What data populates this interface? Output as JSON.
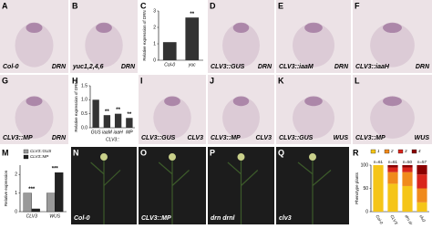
{
  "panels": [
    {
      "letter": "A",
      "left": "Col-0",
      "right": "DRN"
    },
    {
      "letter": "B",
      "left": "yuc1,2,4,6",
      "right": "DRN"
    },
    {
      "letter": "D",
      "left": "CLV3::GUS",
      "right": "DRN"
    },
    {
      "letter": "E",
      "left": "CLV3::iaaM",
      "right": "DRN"
    },
    {
      "letter": "F",
      "left": "CLV3::iaaH",
      "right": "DRN"
    },
    {
      "letter": "G",
      "left": "CLV3::MP",
      "right": "DRN"
    },
    {
      "letter": "I",
      "left": "CLV3::GUS",
      "right": "CLV3"
    },
    {
      "letter": "J",
      "left": "CLV3::MP",
      "right": "CLV3"
    },
    {
      "letter": "K",
      "left": "CLV3::GUS",
      "right": "WUS"
    },
    {
      "letter": "L",
      "left": "CLV3::MP",
      "right": "WUS"
    },
    {
      "letter": "N",
      "left": "Col-0"
    },
    {
      "letter": "O",
      "left": "CLV3::MP"
    },
    {
      "letter": "P",
      "left": "drn drnl"
    },
    {
      "letter": "Q",
      "left": "clv3"
    }
  ],
  "chart_data": [
    {
      "type": "bar",
      "letter": "C",
      "ylabel": "Relative expression of DRN",
      "categories": [
        "Col-0",
        "yuc"
      ],
      "values": [
        1.1,
        2.6
      ],
      "color": "#333333",
      "significance": [
        null,
        "**"
      ],
      "ylim": [
        0,
        3
      ],
      "yticks": [
        0,
        1,
        2,
        3
      ]
    },
    {
      "type": "bar",
      "letter": "H",
      "ylabel": "Relative expression of DRN",
      "xlabel": "CLV3::",
      "categories": [
        "GUS",
        "iaaM",
        "iaaH",
        "MP"
      ],
      "values": [
        1.0,
        0.45,
        0.5,
        0.35
      ],
      "color": "#333333",
      "significance": [
        null,
        "**",
        "**",
        "**"
      ],
      "ylim": [
        0,
        1.5
      ],
      "yticks": [
        {
          "value": 0,
          "label": "0.0"
        },
        {
          "value": 0.5,
          "label": "0.5"
        },
        {
          "value": 1,
          "label": "1.0"
        },
        {
          "value": 1.5,
          "label": "1.5"
        }
      ]
    },
    {
      "type": "bar",
      "letter": "M",
      "ylabel": "Relative expression",
      "categories": [
        "CLV3",
        "WUS"
      ],
      "series": [
        {
          "name": "CLV3::GUS",
          "color": "#9a9a9a",
          "values": [
            1,
            1
          ]
        },
        {
          "name": "CLV3::MP",
          "color": "#222222",
          "values": [
            0.15,
            2.1
          ]
        }
      ],
      "significance": [
        "***",
        "***"
      ],
      "ylim": [
        0,
        2.5
      ],
      "yticks": [
        0,
        1,
        2
      ]
    },
    {
      "type": "stacked_bar",
      "letter": "R",
      "ylabel": "Phenotype plants",
      "categories": [
        "Col-0",
        "CLV3::MP",
        "drn drnl",
        "clv3"
      ],
      "annotations": [
        "n=61",
        "n=61",
        "n=50",
        "n=57"
      ],
      "series": [
        {
          "name": "1",
          "color": "#f5c518",
          "values": [
            100,
            60,
            55,
            20
          ]
        },
        {
          "name": "2",
          "color": "#f08a1c",
          "values": [
            0,
            25,
            30,
            30
          ]
        },
        {
          "name": "3",
          "color": "#d9261c",
          "values": [
            0,
            10,
            10,
            30
          ]
        },
        {
          "name": "4",
          "color": "#8b0000",
          "values": [
            0,
            5,
            5,
            20
          ]
        }
      ],
      "ylim": [
        0,
        100
      ],
      "yticks": [
        0,
        50,
        100
      ]
    }
  ]
}
